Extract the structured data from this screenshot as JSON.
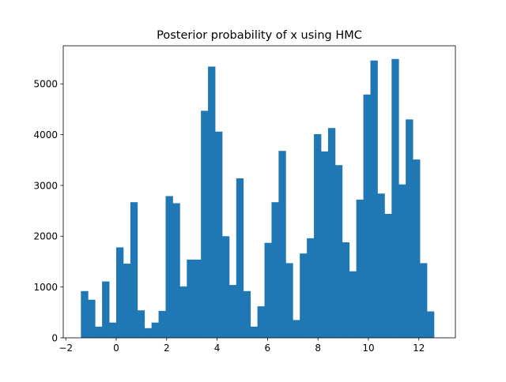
{
  "chart_data": {
    "type": "bar",
    "title": "Posterior probability of x using HMC",
    "xlabel": "",
    "ylabel": "",
    "xlim": [
      -2.1,
      13.45
    ],
    "ylim": [
      0,
      5750
    ],
    "xticks": [
      -2,
      0,
      2,
      4,
      6,
      8,
      10,
      12
    ],
    "xtick_labels": [
      "−2",
      "0",
      "2",
      "4",
      "6",
      "8",
      "10",
      "12"
    ],
    "yticks": [
      0,
      1000,
      2000,
      3000,
      4000,
      5000
    ],
    "ytick_labels": [
      "0",
      "1000",
      "2000",
      "3000",
      "4000",
      "5000"
    ],
    "bar_color": "#1f77b4",
    "grid": false,
    "bin_start": -1.4,
    "bin_width": 0.28,
    "counts": [
      920,
      750,
      220,
      1110,
      300,
      1780,
      1460,
      2670,
      540,
      190,
      300,
      530,
      2790,
      2650,
      1010,
      1540,
      1540,
      4470,
      5340,
      4060,
      2000,
      1040,
      3140,
      920,
      220,
      620,
      1870,
      2670,
      3680,
      1470,
      350,
      1660,
      1960,
      4010,
      3670,
      4130,
      3400,
      1880,
      1310,
      2720,
      4790,
      5460,
      2840,
      2440,
      5490,
      3020,
      4300,
      3510,
      1470,
      520
    ]
  }
}
